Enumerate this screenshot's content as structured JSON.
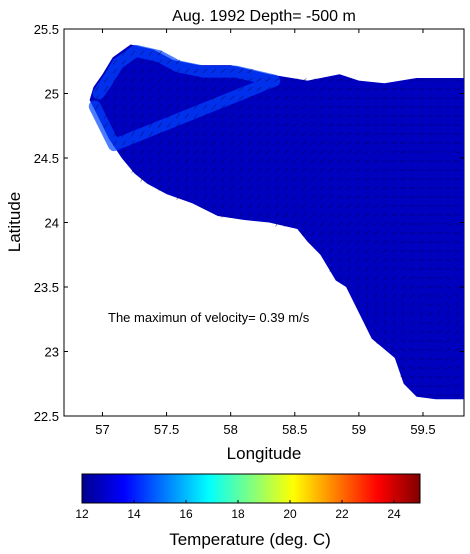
{
  "chart_data": {
    "type": "heatmap",
    "title": "Aug. 1992  Depth=  -500 m",
    "xlabel": "Longitude",
    "ylabel": "Latitude",
    "xlim": [
      56.7,
      59.82
    ],
    "ylim": [
      22.5,
      25.5
    ],
    "x_ticks": [
      "57",
      "57.5",
      "58",
      "58.5",
      "59",
      "59.5"
    ],
    "y_ticks": [
      "22.5",
      "23",
      "23.5",
      "24",
      "24.5",
      "25",
      "25.5"
    ],
    "annotation": "The maximun of velocity= 0.39 m/s",
    "colorbar": {
      "label": "Temperature (deg. C)",
      "range": [
        12,
        25
      ],
      "ticks": [
        "12",
        "14",
        "16",
        "18",
        "20",
        "22",
        "24"
      ],
      "colormap": "jet"
    },
    "field": {
      "background_temperature": 12.7,
      "coastal_temperature": 14.5,
      "domain_outline_lonlat": [
        [
          56.93,
          25.05
        ],
        [
          57.0,
          25.15
        ],
        [
          57.08,
          25.28
        ],
        [
          57.22,
          25.38
        ],
        [
          57.4,
          25.34
        ],
        [
          57.55,
          25.26
        ],
        [
          57.75,
          25.22
        ],
        [
          58.0,
          25.22
        ],
        [
          58.3,
          25.15
        ],
        [
          58.6,
          25.1
        ],
        [
          58.85,
          25.15
        ],
        [
          59.0,
          25.1
        ],
        [
          59.2,
          25.08
        ],
        [
          59.45,
          25.12
        ],
        [
          59.82,
          25.12
        ],
        [
          59.82,
          22.63
        ],
        [
          59.6,
          22.63
        ],
        [
          59.45,
          22.65
        ],
        [
          59.35,
          22.75
        ],
        [
          59.28,
          22.95
        ],
        [
          59.22,
          23.0
        ],
        [
          59.1,
          23.1
        ],
        [
          59.0,
          23.3
        ],
        [
          58.9,
          23.5
        ],
        [
          58.82,
          23.55
        ],
        [
          58.7,
          23.75
        ],
        [
          58.6,
          23.85
        ],
        [
          58.52,
          23.95
        ],
        [
          58.3,
          24.0
        ],
        [
          58.1,
          24.02
        ],
        [
          57.9,
          24.05
        ],
        [
          57.7,
          24.15
        ],
        [
          57.5,
          24.22
        ],
        [
          57.35,
          24.3
        ],
        [
          57.25,
          24.38
        ],
        [
          57.15,
          24.5
        ],
        [
          57.05,
          24.65
        ],
        [
          56.95,
          24.85
        ],
        [
          56.9,
          24.95
        ]
      ]
    }
  }
}
